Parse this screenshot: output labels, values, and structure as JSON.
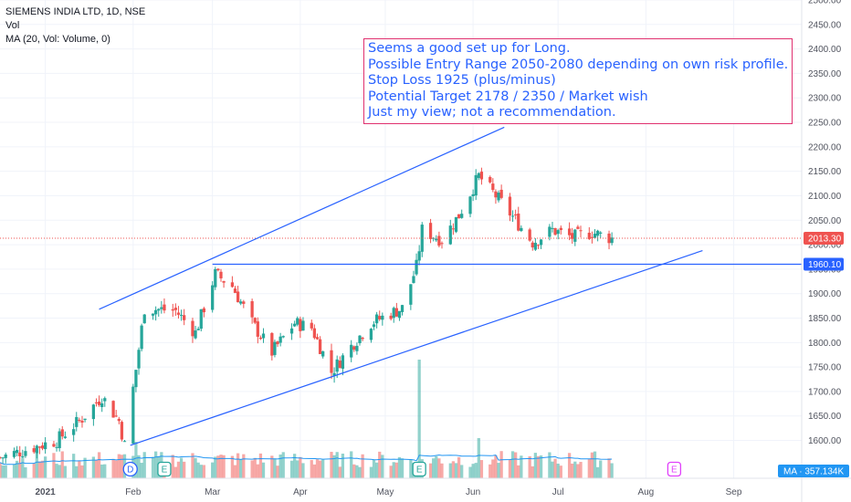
{
  "legend": {
    "symbol": "SIEMENS INDIA LTD, 1D, NSE",
    "vol": "Vol",
    "ma": "MA (20, Vol: Volume, 0)"
  },
  "note": {
    "lines": [
      "Seems a good set up for Long.",
      "Possible Entry Range 2050-2080 depending on own risk profile.",
      "Stop Loss 1925 (plus/minus)",
      "Potential Target 2178 / 2350 / Market wish",
      "Just my view; not a recommendation."
    ]
  },
  "price_labels": {
    "last": "2013.30",
    "level": "1960.10",
    "ma_volume": "MA · 357.134K"
  },
  "colors": {
    "up": "#26a69a",
    "down": "#ef5350",
    "trendline": "#2962ff",
    "note_border": "#e0306f",
    "ma_line": "#2196f3"
  },
  "event_markers": [
    "D",
    "E",
    "E",
    "E"
  ],
  "chart_data": {
    "type": "candlestick",
    "title": "SIEMENS INDIA LTD, 1D, NSE",
    "y_axis": {
      "range": [
        1560,
        2500
      ],
      "ticks": [
        1600,
        1650,
        1700,
        1750,
        1800,
        1850,
        1900,
        1950,
        2000,
        2050,
        2100,
        2150,
        2200,
        2250,
        2300,
        2350,
        2400,
        2450,
        2500
      ],
      "tick_labels": [
        "1600.00",
        "1650.00",
        "1700.00",
        "1750.00",
        "1800.00",
        "1850.00",
        "1900.00",
        "1950.00",
        "2000.00",
        "2050.00",
        "2100.00",
        "2150.00",
        "2200.00",
        "2250.00",
        "2300.00",
        "2350.00",
        "2400.00",
        "2450.00",
        "2500.00"
      ]
    },
    "x_axis": {
      "range": [
        "2020-12-16",
        "2021-09-25"
      ],
      "ticks": [
        {
          "date": "2021-01-01",
          "label": "2021"
        },
        {
          "date": "2021-02-01",
          "label": "Feb"
        },
        {
          "date": "2021-03-01",
          "label": "Mar"
        },
        {
          "date": "2021-04-01",
          "label": "Apr"
        },
        {
          "date": "2021-05-01",
          "label": "May"
        },
        {
          "date": "2021-06-01",
          "label": "Jun"
        },
        {
          "date": "2021-07-01",
          "label": "Jul"
        },
        {
          "date": "2021-08-01",
          "label": "Aug"
        },
        {
          "date": "2021-09-01",
          "label": "Sep"
        }
      ]
    },
    "last_price": 2013.3,
    "horizontal_level": 1960.1,
    "trend_lines": [
      {
        "name": "upper channel",
        "from": [
          "2021-01-20",
          1868
        ],
        "to": [
          "2021-06-12",
          2240
        ]
      },
      {
        "name": "lower channel",
        "from": [
          "2021-01-31",
          1590
        ],
        "to": [
          "2021-08-21",
          1988
        ]
      }
    ],
    "ma_volume": "357.134K",
    "events": [
      {
        "date": "2021-01-31",
        "label": "D"
      },
      {
        "date": "2021-02-12",
        "label": "E"
      },
      {
        "date": "2021-05-13",
        "label": "E"
      },
      {
        "date": "2021-08-11",
        "label": "E"
      }
    ],
    "anchors": [
      {
        "date": "2020-12-16",
        "close": 1565
      },
      {
        "date": "2021-01-05",
        "close": 1600
      },
      {
        "date": "2021-01-14",
        "close": 1645
      },
      {
        "date": "2021-01-21",
        "close": 1690
      },
      {
        "date": "2021-01-27",
        "close": 1640
      },
      {
        "date": "2021-01-29",
        "close": 1590
      },
      {
        "date": "2021-02-02",
        "close": 1745
      },
      {
        "date": "2021-02-05",
        "close": 1870
      },
      {
        "date": "2021-02-16",
        "close": 1865
      },
      {
        "date": "2021-02-23",
        "close": 1820
      },
      {
        "date": "2021-03-02",
        "close": 1940
      },
      {
        "date": "2021-03-08",
        "close": 1915
      },
      {
        "date": "2021-03-15",
        "close": 1840
      },
      {
        "date": "2021-03-22",
        "close": 1780
      },
      {
        "date": "2021-03-30",
        "close": 1840
      },
      {
        "date": "2021-04-05",
        "close": 1830
      },
      {
        "date": "2021-04-12",
        "close": 1740
      },
      {
        "date": "2021-04-20",
        "close": 1800
      },
      {
        "date": "2021-04-26",
        "close": 1840
      },
      {
        "date": "2021-05-03",
        "close": 1860
      },
      {
        "date": "2021-05-07",
        "close": 1870
      },
      {
        "date": "2021-05-12",
        "close": 1955
      },
      {
        "date": "2021-05-14",
        "close": 2030
      },
      {
        "date": "2021-05-21",
        "close": 2010
      },
      {
        "date": "2021-05-27",
        "close": 2060
      },
      {
        "date": "2021-06-03",
        "close": 2140
      },
      {
        "date": "2021-06-09",
        "close": 2100
      },
      {
        "date": "2021-06-16",
        "close": 2050
      },
      {
        "date": "2021-06-22",
        "close": 2005
      },
      {
        "date": "2021-06-29",
        "close": 2030
      },
      {
        "date": "2021-07-06",
        "close": 2015
      },
      {
        "date": "2021-07-13",
        "close": 2025
      },
      {
        "date": "2021-07-20",
        "close": 2013
      }
    ],
    "volume_peaks": [
      {
        "date": "2021-05-13",
        "ratio": 6.5
      },
      {
        "date": "2021-02-02",
        "ratio": 2.0
      },
      {
        "date": "2021-06-03",
        "ratio": 2.2
      }
    ]
  }
}
